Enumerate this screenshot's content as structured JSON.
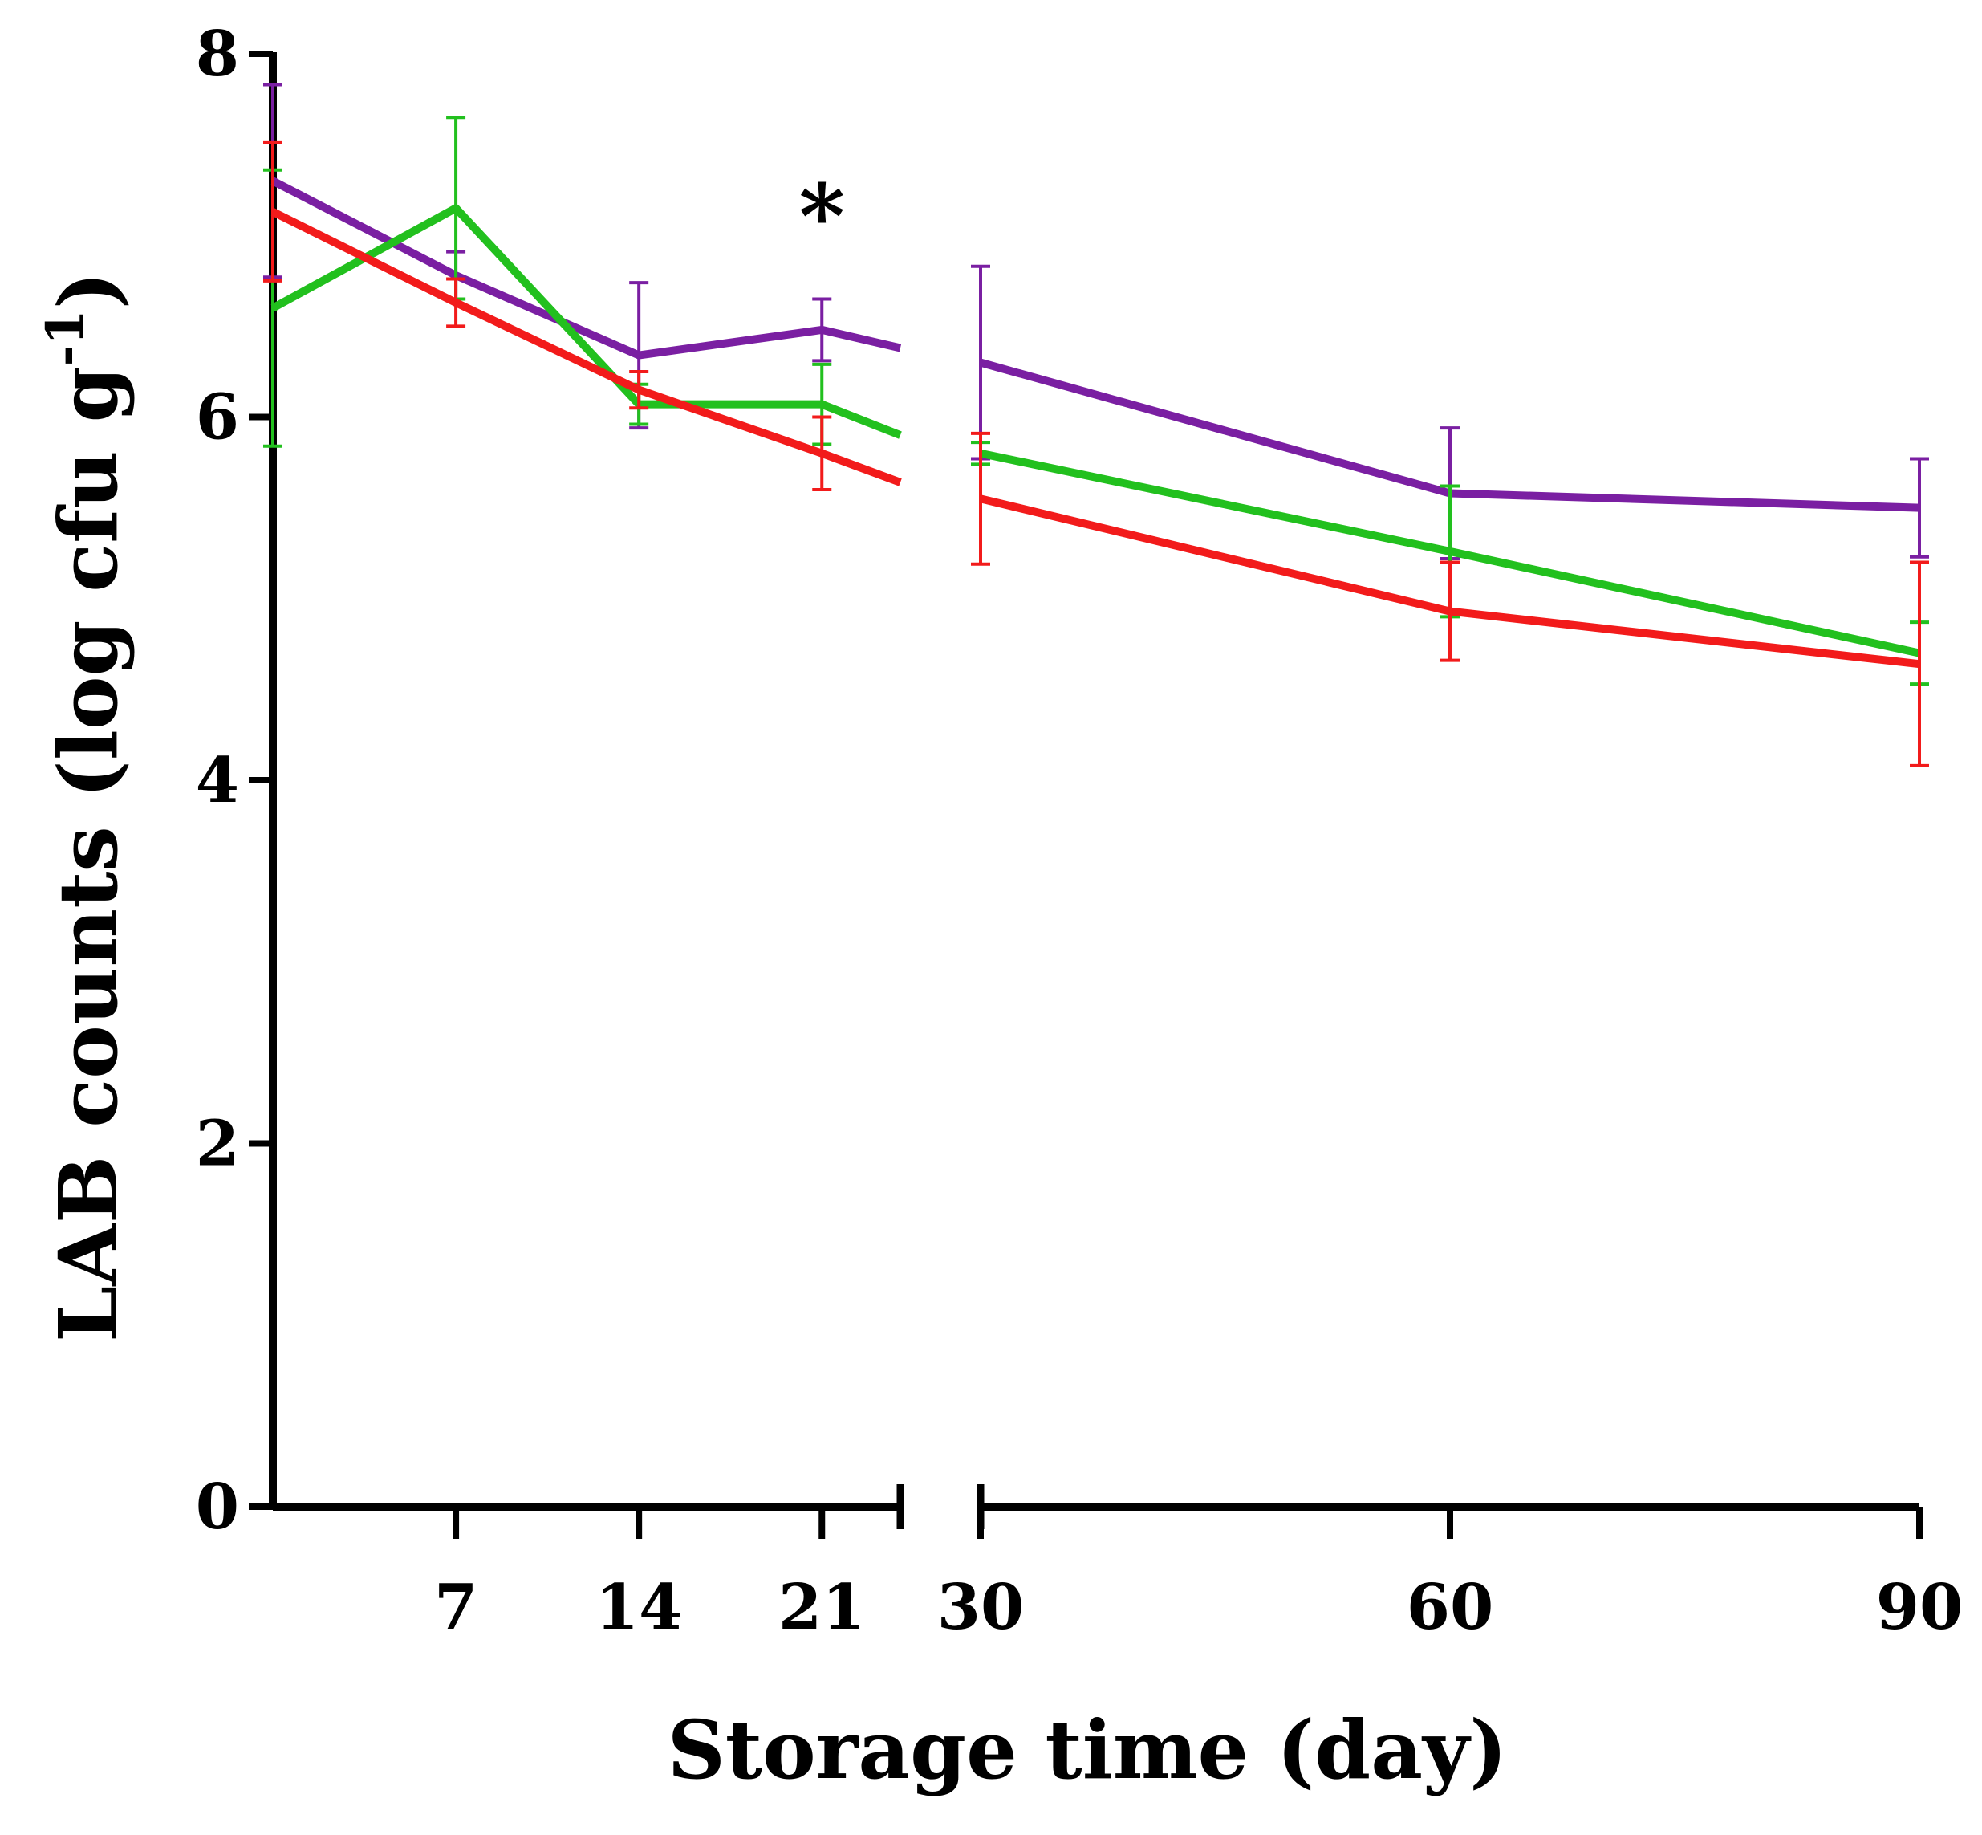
{
  "chart_data": {
    "type": "line",
    "title": "",
    "xlabel": "Storage time (day)",
    "ylabel_main": "LAB counts (log cfu g",
    "ylabel_superscript": "-1",
    "ylabel_close": ")",
    "ylim": [
      0,
      8
    ],
    "y_ticks": [
      0,
      2,
      4,
      6,
      8
    ],
    "y_tick_labels": [
      "0",
      "2",
      "4",
      "6",
      "8"
    ],
    "x_axis_broken": true,
    "x_segments": [
      {
        "range": [
          0,
          24
        ],
        "ticks": [
          7,
          14,
          21
        ],
        "tick_labels": [
          "7",
          "14",
          "21"
        ]
      },
      {
        "range": [
          30,
          90
        ],
        "ticks": [
          30,
          60,
          90
        ],
        "tick_labels": [
          "30",
          "60",
          "90"
        ]
      }
    ],
    "legend": "none",
    "annotations": [
      {
        "text": "*",
        "x": 21,
        "y": 7.2
      }
    ],
    "series": [
      {
        "name": "purple",
        "color": "#7a1fa2",
        "x": [
          0,
          7,
          14,
          21,
          24,
          30,
          60,
          90
        ],
        "y": [
          7.3,
          6.78,
          6.34,
          6.48,
          6.38,
          6.3,
          5.58,
          5.5
        ],
        "err": [
          0.53,
          0.13,
          0.4,
          0.17,
          null,
          0.53,
          0.36,
          0.27
        ]
      },
      {
        "name": "green",
        "color": "#22c01e",
        "x": [
          0,
          7,
          14,
          21,
          24,
          30,
          60,
          90
        ],
        "y": [
          6.6,
          7.15,
          6.07,
          6.07,
          5.9,
          5.8,
          5.26,
          4.7
        ],
        "err": [
          0.76,
          0.5,
          0.11,
          0.22,
          null,
          0.06,
          0.36,
          0.17
        ]
      },
      {
        "name": "red",
        "color": "#f21b1b",
        "x": [
          0,
          7,
          14,
          21,
          24,
          30,
          60,
          90
        ],
        "y": [
          7.13,
          6.63,
          6.15,
          5.8,
          5.64,
          5.55,
          4.93,
          4.64
        ],
        "err": [
          0.38,
          0.13,
          0.1,
          0.2,
          null,
          0.36,
          0.27,
          0.56
        ]
      }
    ]
  }
}
